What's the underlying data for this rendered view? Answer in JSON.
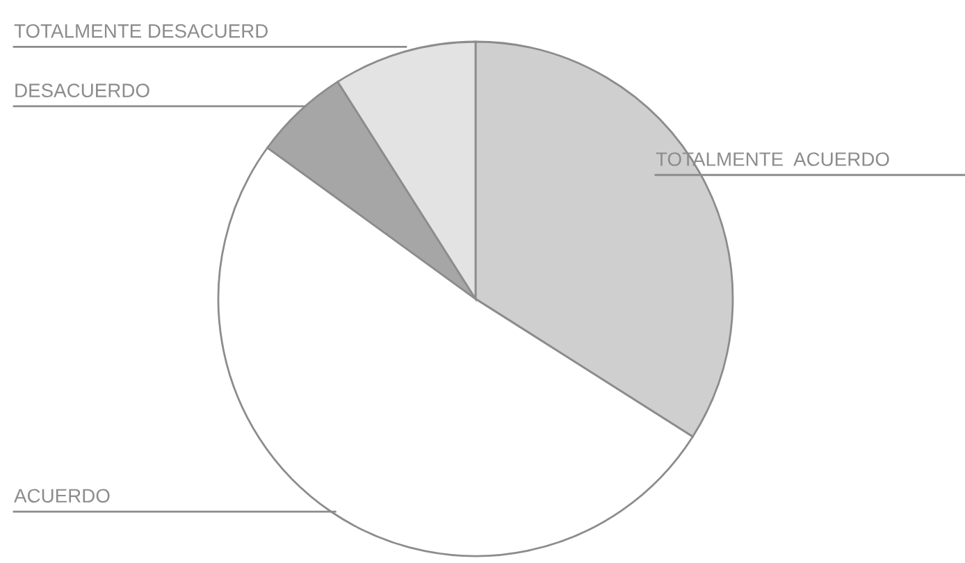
{
  "chart_data": {
    "type": "pie",
    "categories": [
      "TOTALMENTE  ACUERDO",
      "ACUERDO",
      "DESACUERDO",
      "TOTALMENTE DESACUERD"
    ],
    "values": [
      34,
      51,
      6,
      9
    ],
    "colors": [
      "#cfcfcf",
      "#ffffff",
      "#a6a6a6",
      "#e3e3e3"
    ]
  }
}
